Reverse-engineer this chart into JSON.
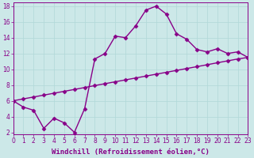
{
  "xlabel": "Windchill (Refroidissement éolien,°C)",
  "line1_x": [
    0,
    1,
    2,
    3,
    4,
    5,
    6,
    7,
    8,
    9,
    10,
    11,
    12,
    13,
    14,
    15,
    16,
    17,
    18,
    19,
    20,
    21,
    22,
    23
  ],
  "line1_y": [
    6.0,
    5.2,
    4.8,
    2.5,
    3.8,
    3.2,
    2.0,
    5.0,
    11.3,
    12.0,
    14.2,
    14.0,
    15.5,
    17.5,
    18.0,
    17.0,
    14.5,
    13.8,
    12.5,
    12.2,
    12.6,
    12.0,
    12.2,
    11.5
  ],
  "line2_x": [
    0,
    1,
    2,
    3,
    4,
    5,
    6,
    7,
    8,
    9,
    10,
    11,
    12,
    13,
    14,
    15,
    16,
    17,
    18,
    19,
    20,
    21,
    22,
    23
  ],
  "line2_y": [
    6.0,
    6.24,
    6.48,
    6.72,
    6.96,
    7.2,
    7.44,
    7.68,
    7.93,
    8.17,
    8.41,
    8.65,
    8.89,
    9.13,
    9.37,
    9.61,
    9.85,
    10.09,
    10.33,
    10.57,
    10.82,
    11.06,
    11.3,
    11.5
  ],
  "line_color": "#880088",
  "marker": "D",
  "markersize": 2.5,
  "linewidth": 1.0,
  "xlim": [
    0,
    23
  ],
  "ylim": [
    2,
    18
  ],
  "yticks": [
    2,
    4,
    6,
    8,
    10,
    12,
    14,
    16,
    18
  ],
  "xticks": [
    0,
    1,
    2,
    3,
    4,
    5,
    6,
    7,
    8,
    9,
    10,
    11,
    12,
    13,
    14,
    15,
    16,
    17,
    18,
    19,
    20,
    21,
    22,
    23
  ],
  "grid_color": "#b0d8d8",
  "bg_color": "#cce8e8",
  "xlabel_fontsize": 6.5,
  "tick_fontsize": 5.5
}
